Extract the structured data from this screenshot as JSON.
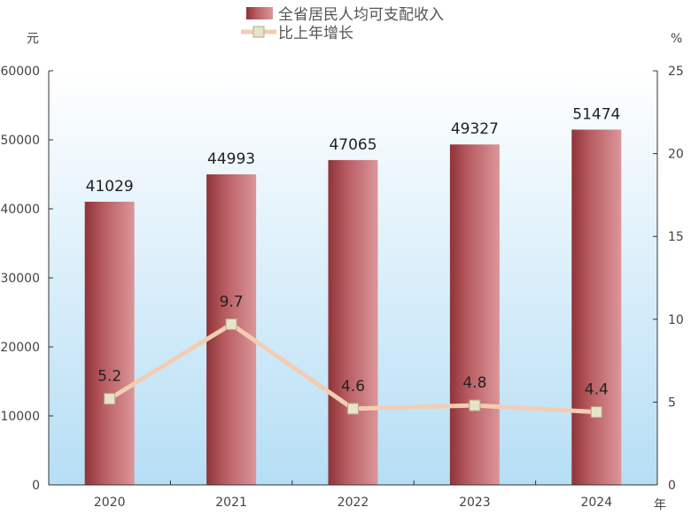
{
  "chart_data": {
    "type": "bar+line",
    "categories": [
      "2020",
      "2021",
      "2022",
      "2023",
      "2024"
    ],
    "series": [
      {
        "name": "全省居民人均可支配收入",
        "type": "bar",
        "axis": "left",
        "values": [
          41029,
          44993,
          47065,
          49327,
          51474
        ],
        "color": "#b35a5f"
      },
      {
        "name": "比上年增长",
        "type": "line",
        "axis": "right",
        "values": [
          5.2,
          9.7,
          4.6,
          4.8,
          4.4
        ],
        "color": "#f3cdb3"
      }
    ],
    "yleft": {
      "unit": "元",
      "range": [
        0,
        60000
      ],
      "ticks": [
        0,
        10000,
        20000,
        30000,
        40000,
        50000,
        60000
      ]
    },
    "yright": {
      "unit": "%",
      "range": [
        0,
        25
      ],
      "ticks": [
        0,
        5,
        10,
        15,
        20,
        25
      ]
    },
    "xunit": "年",
    "legend_position": "top-center",
    "grid": false
  }
}
